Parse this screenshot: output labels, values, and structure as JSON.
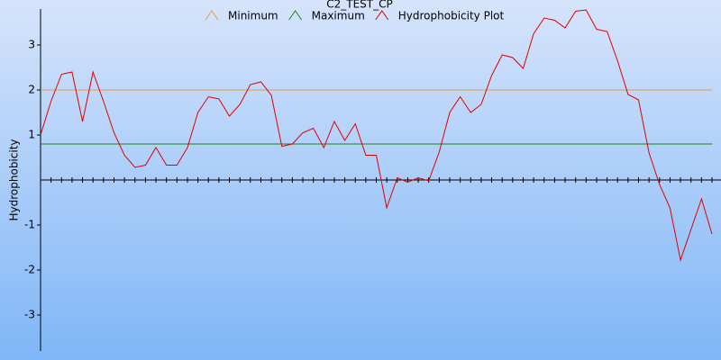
{
  "chart_data": {
    "type": "line",
    "title": "C2_TEST_CP",
    "y_label": "Hydrophobicity",
    "ylim": [
      -3.8,
      3.8
    ],
    "yticks": [
      -3,
      -2,
      -1,
      1,
      2,
      3
    ],
    "series": [
      {
        "name": "Minimum",
        "color": "#e0a040",
        "value": 2
      },
      {
        "name": "Maximum",
        "color": "#208020",
        "value": 0.8
      },
      {
        "name": "Hydrophobicity Plot",
        "color": "#e00000",
        "values": [
          1.0,
          1.75,
          2.35,
          2.4,
          1.3,
          2.4,
          1.75,
          1.05,
          0.55,
          0.28,
          0.33,
          0.72,
          0.33,
          0.33,
          0.72,
          1.5,
          1.85,
          1.8,
          1.42,
          1.68,
          2.12,
          2.18,
          1.88,
          0.75,
          0.8,
          1.05,
          1.15,
          0.72,
          1.3,
          0.88,
          1.25,
          0.55,
          0.55,
          -0.62,
          0.05,
          -0.05,
          0.05,
          -0.02,
          0.62,
          1.5,
          1.85,
          1.5,
          1.68,
          2.32,
          2.78,
          2.72,
          2.48,
          3.25,
          3.6,
          3.55,
          3.38,
          3.75,
          3.78,
          3.35,
          3.3,
          2.65,
          1.9,
          1.78,
          0.6,
          -0.1,
          -0.62,
          -1.78,
          -1.1,
          -0.42,
          -1.2
        ]
      }
    ]
  }
}
